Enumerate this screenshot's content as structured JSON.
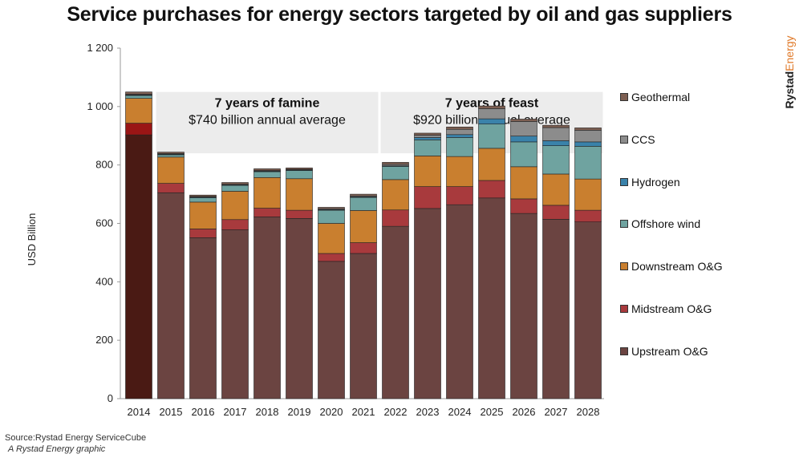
{
  "title": "Service purchases for energy sectors targeted by oil and gas suppliers",
  "logo": {
    "part1": "Rystad",
    "part2": "Energy"
  },
  "footer": {
    "source": "Source:Rystad Energy ServiceCube",
    "credit": "A Rystad Energy graphic"
  },
  "colors": {
    "upstream_2014": "#4a1a14",
    "upstream": "#6b4441",
    "midstream": "#a83a3d",
    "midstream_2014": "#9a1515",
    "downstream": "#c97f2f",
    "offshore_wind": "#6fa3a0",
    "hydrogen": "#3a82aa",
    "ccs": "#8c8c8c",
    "geothermal": "#7d5f52",
    "shade": "#ececec"
  },
  "chart_data": {
    "type": "bar",
    "stacked": true,
    "ylabel": "USD Billion",
    "ylim": [
      0,
      1200
    ],
    "yticks": [
      0,
      200,
      400,
      600,
      800,
      1000,
      1200
    ],
    "ytick_labels": [
      "0",
      "200",
      "400",
      "600",
      "800",
      "1 000",
      "1 200"
    ],
    "categories": [
      "2014",
      "2015",
      "2016",
      "2017",
      "2018",
      "2019",
      "2020",
      "2021",
      "2022",
      "2023",
      "2024",
      "2025",
      "2026",
      "2027",
      "2028"
    ],
    "series": [
      {
        "name": "Upstream O&G",
        "key": "upstream",
        "values": [
          903,
          705,
          551,
          578,
          622,
          617,
          470,
          497,
          590,
          651,
          664,
          687,
          634,
          614,
          605
        ]
      },
      {
        "name": "Midstream O&G",
        "key": "midstream",
        "values": [
          40,
          32,
          30,
          35,
          30,
          28,
          27,
          37,
          56,
          75,
          62,
          60,
          50,
          48,
          40
        ]
      },
      {
        "name": "Downstream O&G",
        "key": "downstream",
        "values": [
          85,
          90,
          92,
          97,
          105,
          108,
          103,
          110,
          104,
          105,
          103,
          110,
          110,
          107,
          107
        ]
      },
      {
        "name": "Offshore wind",
        "key": "offshore_wind",
        "values": [
          10,
          8,
          15,
          20,
          20,
          28,
          45,
          45,
          45,
          55,
          65,
          83,
          85,
          97,
          112
        ]
      },
      {
        "name": "Hydrogen",
        "key": "hydrogen",
        "values": [
          2,
          2,
          2,
          2,
          2,
          2,
          2,
          2,
          2,
          8,
          10,
          18,
          20,
          17,
          15
        ]
      },
      {
        "name": "CCS",
        "key": "ccs",
        "values": [
          2,
          2,
          2,
          2,
          2,
          2,
          3,
          3,
          5,
          8,
          18,
          35,
          50,
          45,
          40
        ]
      },
      {
        "name": "Geothermal",
        "key": "geothermal",
        "values": [
          8,
          5,
          5,
          6,
          6,
          5,
          5,
          6,
          7,
          7,
          8,
          9,
          8,
          8,
          8
        ]
      }
    ],
    "annotations": [
      {
        "title": "7 years of famine",
        "subtitle": "$740 billion annual average",
        "from": "2015",
        "to": "2021"
      },
      {
        "title": "7 years of feast",
        "subtitle": "$920 billion annual average",
        "from": "2022",
        "to": "2028"
      }
    ],
    "legend": {
      "placement": "right",
      "order": [
        "Geothermal",
        "CCS",
        "Hydrogen",
        "Offshore wind",
        "Downstream O&G",
        "Midstream O&G",
        "Upstream O&G"
      ]
    },
    "grid": false
  }
}
